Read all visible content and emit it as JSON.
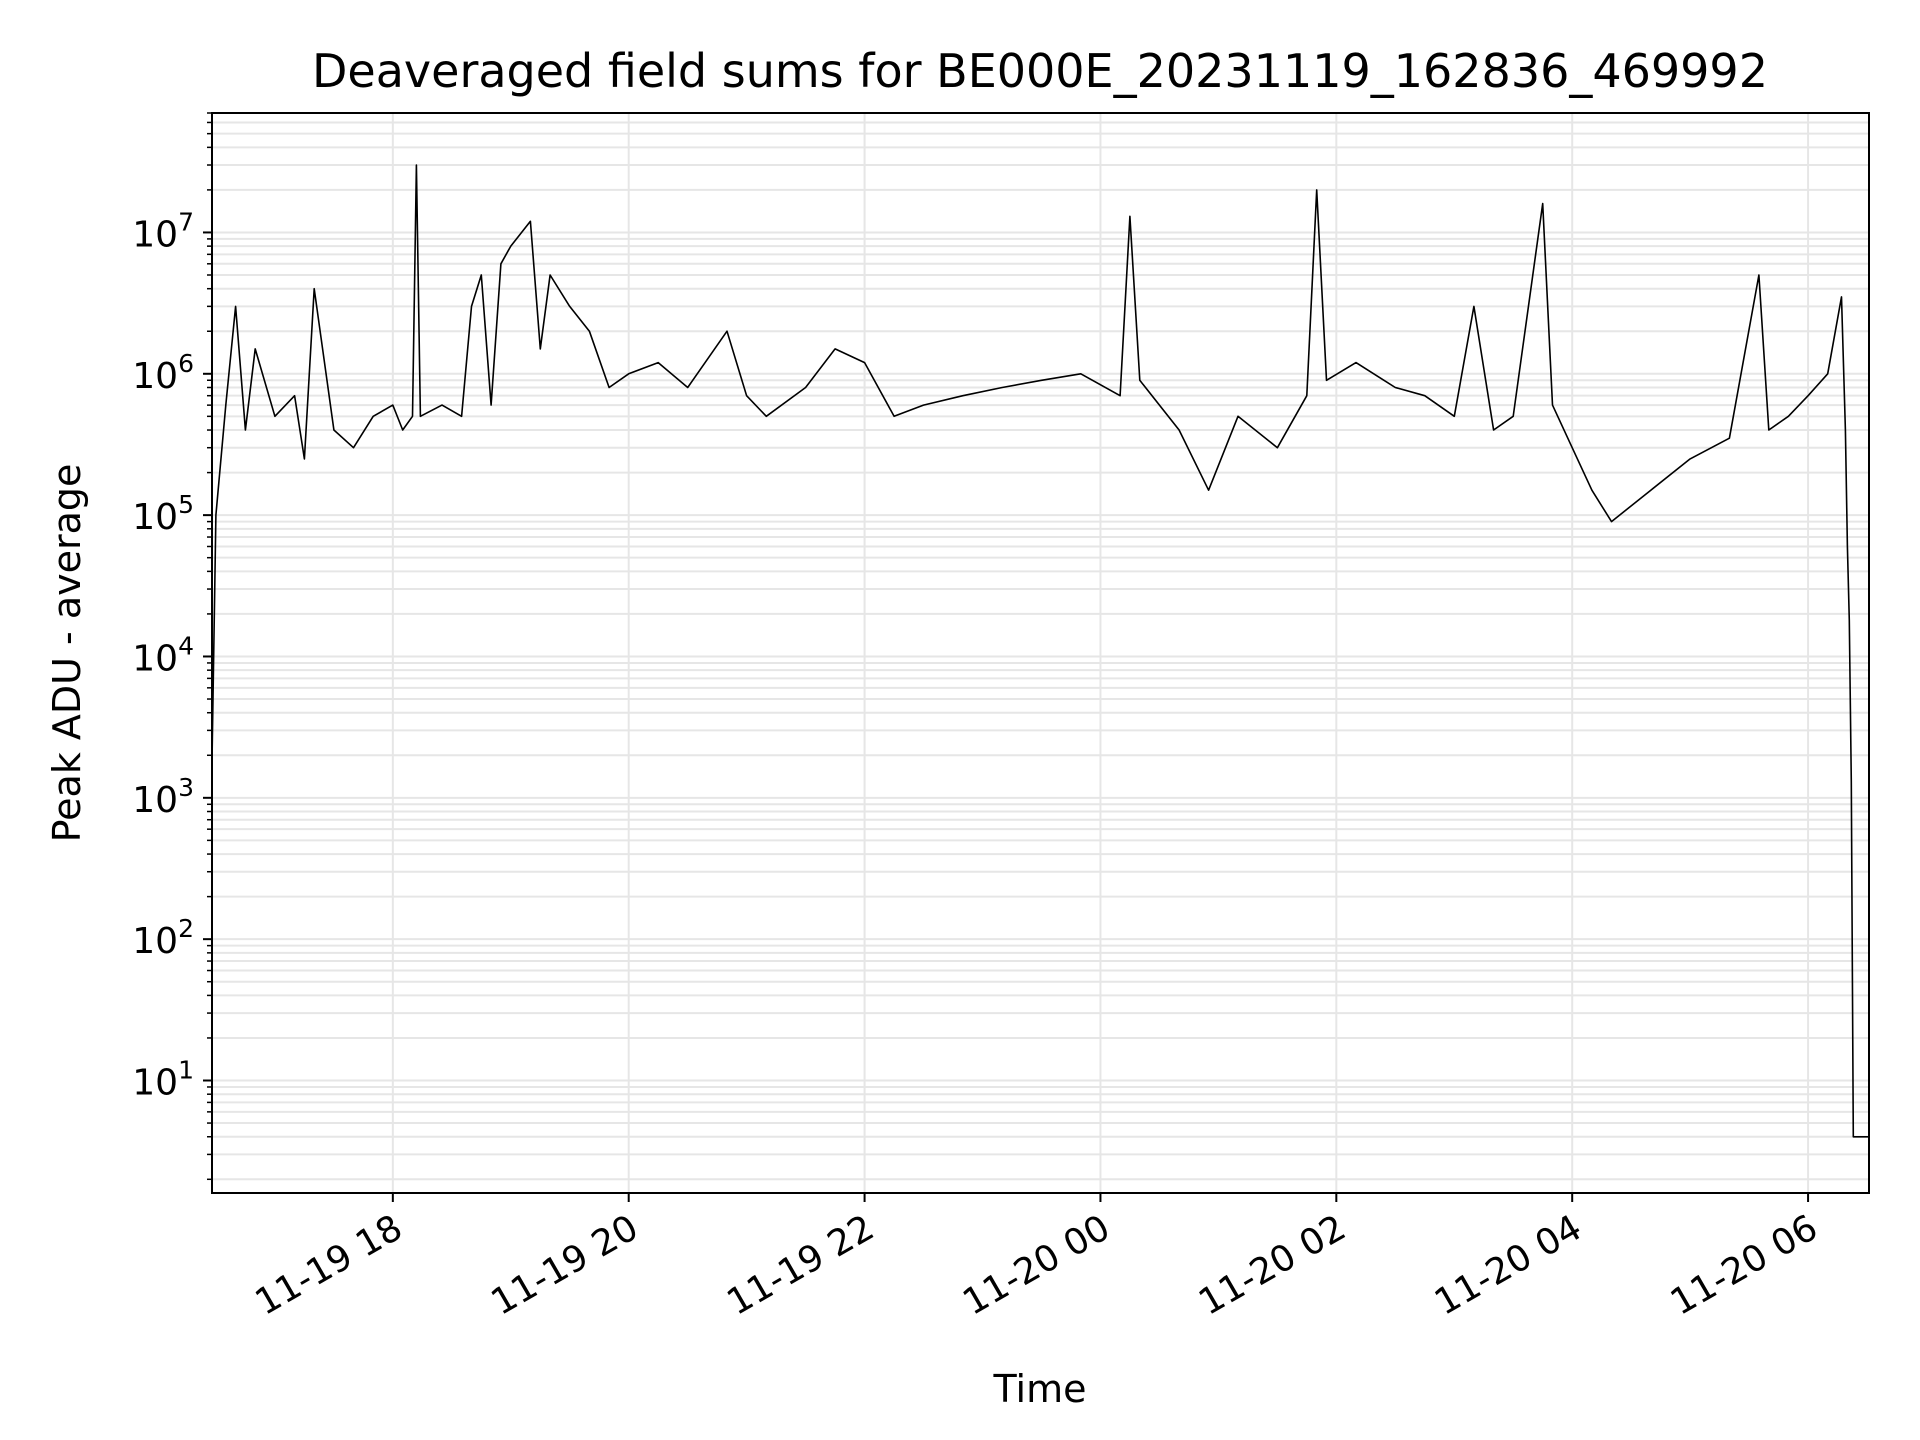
{
  "chart_data": {
    "type": "line",
    "title": "Deaveraged field sums for BE000E_20231119_162836_469992",
    "xlabel": "Time",
    "ylabel": "Peak ADU - average",
    "y_scale": "log",
    "ylim": [
      1.6,
      70000000
    ],
    "xlim": [
      "2023-11-19 16:28",
      "2023-11-20 06:31"
    ],
    "grid": true,
    "line_color": "#000000",
    "grid_color": "#e6e6e6",
    "x_ticks": [
      {
        "t": "2023-11-19 18:00",
        "label": "11-19 18"
      },
      {
        "t": "2023-11-19 20:00",
        "label": "11-19 20"
      },
      {
        "t": "2023-11-19 22:00",
        "label": "11-19 22"
      },
      {
        "t": "2023-11-20 00:00",
        "label": "11-20 00"
      },
      {
        "t": "2023-11-20 02:00",
        "label": "11-20 02"
      },
      {
        "t": "2023-11-20 04:00",
        "label": "11-20 04"
      },
      {
        "t": "2023-11-20 06:00",
        "label": "11-20 06"
      }
    ],
    "y_ticks": [
      {
        "value": 10,
        "base": "10",
        "exp": "1"
      },
      {
        "value": 100,
        "base": "10",
        "exp": "2"
      },
      {
        "value": 1000,
        "base": "10",
        "exp": "3"
      },
      {
        "value": 10000,
        "base": "10",
        "exp": "4"
      },
      {
        "value": 100000,
        "base": "10",
        "exp": "5"
      },
      {
        "value": 1000000,
        "base": "10",
        "exp": "6"
      },
      {
        "value": 10000000,
        "base": "10",
        "exp": "7"
      }
    ],
    "series": [
      {
        "points": [
          [
            "2023-11-19 16:28",
            1800
          ],
          [
            "2023-11-19 16:30",
            100000
          ],
          [
            "2023-11-19 16:35",
            600000
          ],
          [
            "2023-11-19 16:40",
            3000000
          ],
          [
            "2023-11-19 16:45",
            400000
          ],
          [
            "2023-11-19 16:50",
            1500000
          ],
          [
            "2023-11-19 17:00",
            500000
          ],
          [
            "2023-11-19 17:10",
            700000
          ],
          [
            "2023-11-19 17:15",
            250000
          ],
          [
            "2023-11-19 17:20",
            4000000
          ],
          [
            "2023-11-19 17:30",
            400000
          ],
          [
            "2023-11-19 17:40",
            300000
          ],
          [
            "2023-11-19 17:50",
            500000
          ],
          [
            "2023-11-19 18:00",
            600000
          ],
          [
            "2023-11-19 18:05",
            400000
          ],
          [
            "2023-11-19 18:10",
            500000
          ],
          [
            "2023-11-19 18:12",
            30000000
          ],
          [
            "2023-11-19 18:14",
            500000
          ],
          [
            "2023-11-19 18:25",
            600000
          ],
          [
            "2023-11-19 18:35",
            500000
          ],
          [
            "2023-11-19 18:40",
            3000000
          ],
          [
            "2023-11-19 18:45",
            5000000
          ],
          [
            "2023-11-19 18:50",
            600000
          ],
          [
            "2023-11-19 18:55",
            6000000
          ],
          [
            "2023-11-19 19:00",
            8000000
          ],
          [
            "2023-11-19 19:10",
            12000000
          ],
          [
            "2023-11-19 19:15",
            1500000
          ],
          [
            "2023-11-19 19:20",
            5000000
          ],
          [
            "2023-11-19 19:30",
            3000000
          ],
          [
            "2023-11-19 19:40",
            2000000
          ],
          [
            "2023-11-19 19:50",
            800000
          ],
          [
            "2023-11-19 20:00",
            1000000
          ],
          [
            "2023-11-19 20:15",
            1200000
          ],
          [
            "2023-11-19 20:30",
            800000
          ],
          [
            "2023-11-19 20:50",
            2000000
          ],
          [
            "2023-11-19 21:00",
            700000
          ],
          [
            "2023-11-19 21:10",
            500000
          ],
          [
            "2023-11-19 21:30",
            800000
          ],
          [
            "2023-11-19 21:45",
            1500000
          ],
          [
            "2023-11-19 22:00",
            1200000
          ],
          [
            "2023-11-19 22:15",
            500000
          ],
          [
            "2023-11-19 22:30",
            600000
          ],
          [
            "2023-11-19 22:50",
            700000
          ],
          [
            "2023-11-19 23:10",
            800000
          ],
          [
            "2023-11-19 23:30",
            900000
          ],
          [
            "2023-11-19 23:50",
            1000000
          ],
          [
            "2023-11-20 00:10",
            700000
          ],
          [
            "2023-11-20 00:15",
            13000000
          ],
          [
            "2023-11-20 00:20",
            900000
          ],
          [
            "2023-11-20 00:40",
            400000
          ],
          [
            "2023-11-20 00:55",
            150000
          ],
          [
            "2023-11-20 01:10",
            500000
          ],
          [
            "2023-11-20 01:30",
            300000
          ],
          [
            "2023-11-20 01:45",
            700000
          ],
          [
            "2023-11-20 01:50",
            20000000
          ],
          [
            "2023-11-20 01:55",
            900000
          ],
          [
            "2023-11-20 02:10",
            1200000
          ],
          [
            "2023-11-20 02:30",
            800000
          ],
          [
            "2023-11-20 02:45",
            700000
          ],
          [
            "2023-11-20 03:00",
            500000
          ],
          [
            "2023-11-20 03:10",
            3000000
          ],
          [
            "2023-11-20 03:20",
            400000
          ],
          [
            "2023-11-20 03:30",
            500000
          ],
          [
            "2023-11-20 03:45",
            16000000
          ],
          [
            "2023-11-20 03:50",
            600000
          ],
          [
            "2023-11-20 04:00",
            300000
          ],
          [
            "2023-11-20 04:10",
            150000
          ],
          [
            "2023-11-20 04:20",
            90000
          ],
          [
            "2023-11-20 04:40",
            150000
          ],
          [
            "2023-11-20 05:00",
            250000
          ],
          [
            "2023-11-20 05:20",
            350000
          ],
          [
            "2023-11-20 05:35",
            5000000
          ],
          [
            "2023-11-20 05:40",
            400000
          ],
          [
            "2023-11-20 05:50",
            500000
          ],
          [
            "2023-11-20 06:00",
            700000
          ],
          [
            "2023-11-20 06:10",
            1000000
          ],
          [
            "2023-11-20 06:17",
            3500000
          ],
          [
            "2023-11-20 06:19",
            400000
          ],
          [
            "2023-11-20 06:20",
            60000
          ],
          [
            "2023-11-20 06:21",
            18000
          ],
          [
            "2023-11-20 06:22",
            1300
          ],
          [
            "2023-11-20 06:23",
            4
          ],
          [
            "2023-11-20 06:31",
            4
          ]
        ]
      }
    ]
  }
}
